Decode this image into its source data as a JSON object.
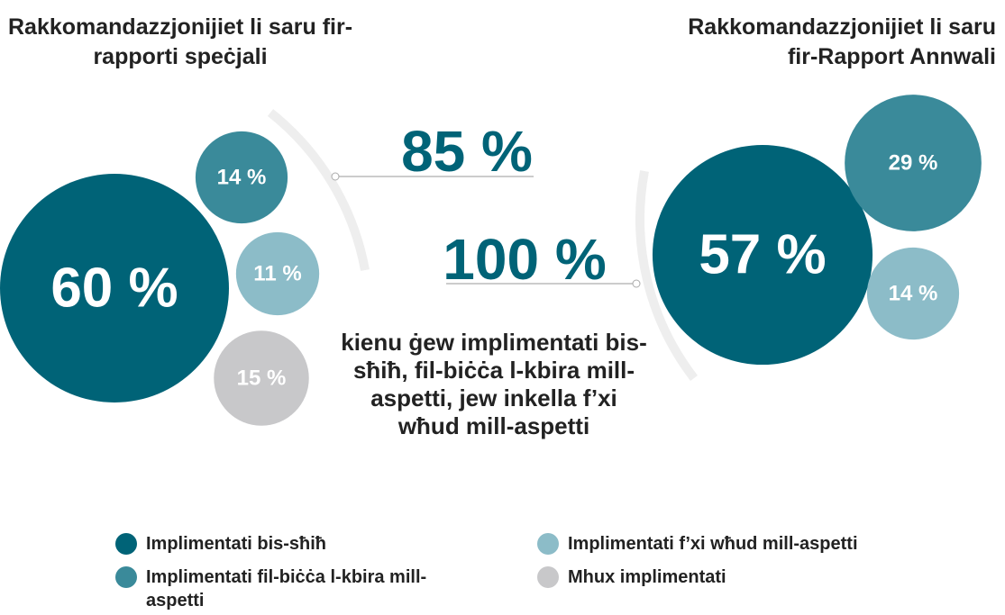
{
  "chart_data": [
    {
      "type": "bubble",
      "title": "Rakkomandazzjonijiet li saru fir-rapporti speċjali",
      "categories": [
        "Implimentati bis-sħiħ",
        "Implimentati fil-biċċa l-kbira mill-aspetti",
        "Implimentati f’xi wħud mill-aspetti",
        "Mhux implimentati"
      ],
      "values": [
        60,
        14,
        11,
        15
      ],
      "value_labels": [
        "60 %",
        "14 %",
        "11 %",
        "15 %"
      ],
      "colors": [
        "#006377",
        "#3a8a9a",
        "#8cbcc8",
        "#c8c8ca"
      ]
    },
    {
      "type": "bubble",
      "title": "Rakkomandazzjonijiet li saru fir-Rapport Annwali",
      "values": [
        57,
        29,
        14
      ],
      "value_labels": [
        "57 %",
        "29 %",
        "14 %"
      ],
      "colors": [
        "#006377",
        "#3a8a9a",
        "#8cbcc8"
      ]
    }
  ],
  "annotations": [
    "85 %",
    "100 %"
  ],
  "note": "kienu ġew implimentati bis-sħiħ, fil-biċċa l-kbira mill-aspetti, jew inkella f’xi wħud mill-aspetti"
}
